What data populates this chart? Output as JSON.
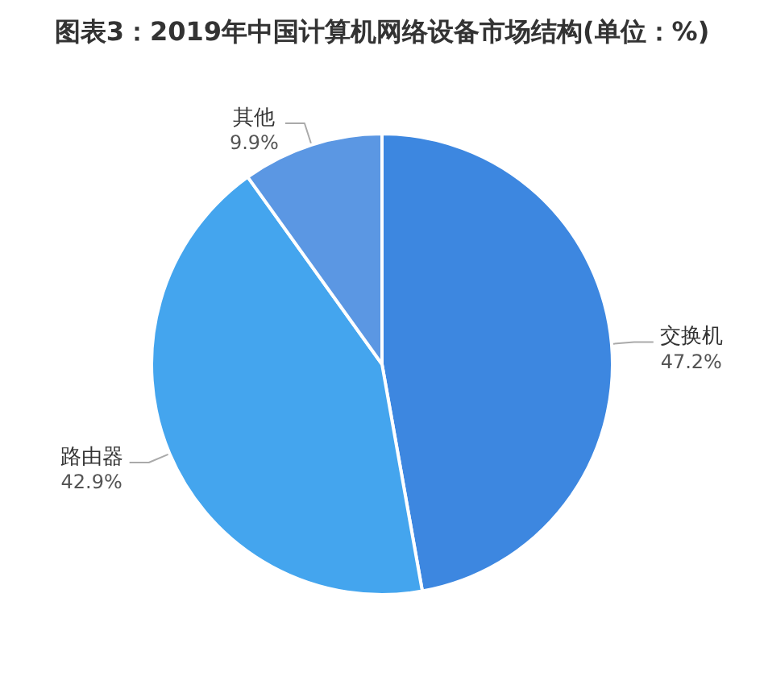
{
  "chart_data": {
    "type": "pie",
    "title": "图表3：2019年中国计算机网络设备市场结构(单位：%)",
    "categories": [
      "交换机",
      "路由器",
      "其他"
    ],
    "values": [
      47.2,
      42.9,
      9.9
    ],
    "colors": [
      "#3d87e0",
      "#44a5ee",
      "#5b97e3"
    ],
    "value_labels": [
      "47.2%",
      "42.9%",
      "9.9%"
    ]
  }
}
